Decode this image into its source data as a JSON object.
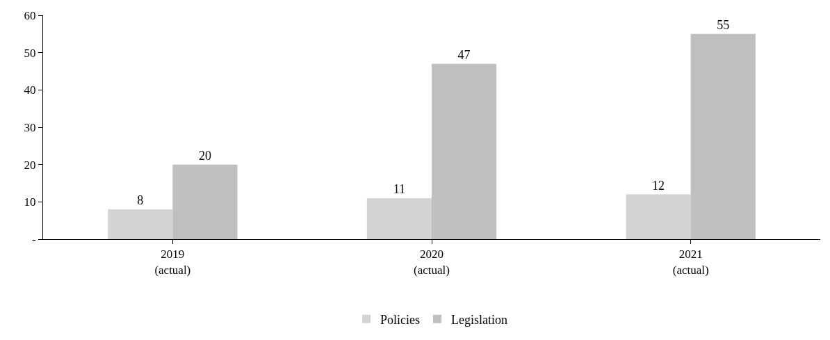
{
  "chart_data": {
    "type": "bar",
    "categories": [
      "2019\n(actual)",
      "2020\n(actual)",
      "2021\n(actual)"
    ],
    "series": [
      {
        "name": "Policies",
        "color": "#d4d4d4",
        "values": [
          8,
          11,
          12
        ]
      },
      {
        "name": "Legislation",
        "color": "#bfbfbf",
        "values": [
          20,
          47,
          55
        ]
      }
    ],
    "ylim": [
      0,
      60
    ],
    "yticks": [
      {
        "value": 0,
        "label": "-"
      },
      10,
      20,
      30,
      40,
      50,
      60
    ],
    "data_labels": true,
    "grid": false,
    "legend": "bottom"
  }
}
